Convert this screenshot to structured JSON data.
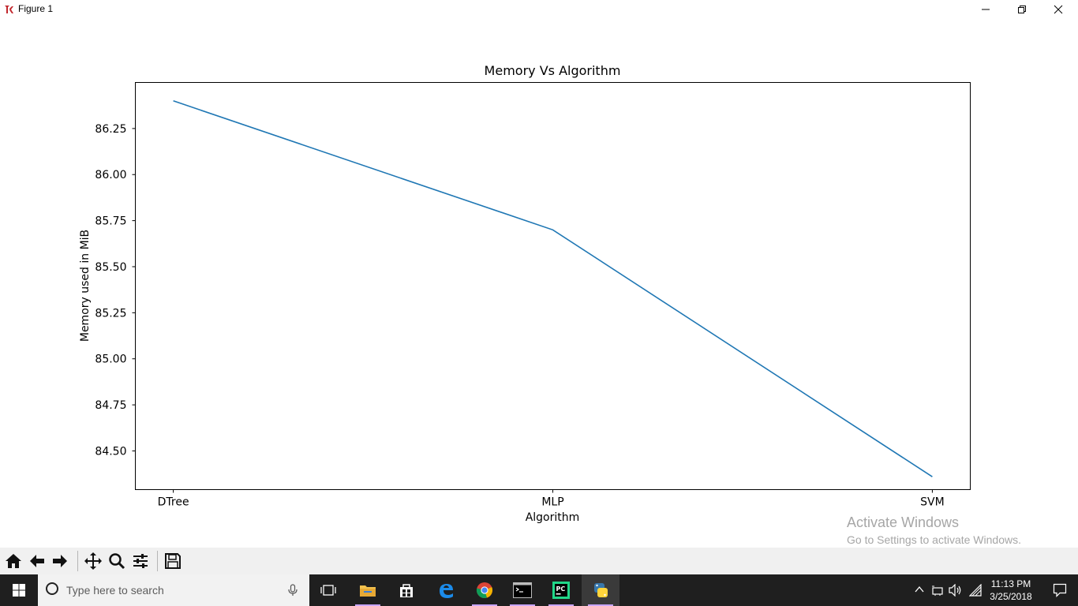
{
  "window": {
    "title": "Figure 1",
    "app_icon": "tk-feather-icon",
    "controls": [
      "minimize-icon",
      "restore-icon",
      "close-icon"
    ]
  },
  "chart_data": {
    "type": "line",
    "title": "Memory Vs Algorithm",
    "xlabel": "Algorithm",
    "ylabel": "Memory used in MiB",
    "categories": [
      "DTree",
      "MLP",
      "SVM"
    ],
    "series": [
      {
        "values": [
          86.4,
          85.7,
          84.36
        ],
        "color": "#1f77b4"
      }
    ],
    "ylim": [
      84.29,
      86.5
    ],
    "yticks": [
      84.5,
      84.75,
      85.0,
      85.25,
      85.5,
      85.75,
      86.0,
      86.25
    ],
    "ytick_labels": [
      "84.50",
      "84.75",
      "85.00",
      "85.25",
      "85.50",
      "85.75",
      "86.00",
      "86.25"
    ],
    "grid": false,
    "legend": "none"
  },
  "watermark": {
    "line1": "Activate Windows",
    "line2": "Go to Settings to activate Windows."
  },
  "toolbar": {
    "buttons": [
      "home-icon",
      "back-arrow-icon",
      "forward-arrow-icon",
      "pan-icon",
      "zoom-icon",
      "configure-subplots-icon",
      "save-icon"
    ]
  },
  "taskbar": {
    "search_placeholder": "Type here to search",
    "apps": [
      "task-view-icon",
      "file-explorer-icon",
      "store-icon",
      "edge-icon",
      "chrome-icon",
      "cmd-icon",
      "pycharm-icon",
      "python-icon"
    ],
    "clock_time": "11:13 PM",
    "clock_date": "3/25/2018",
    "accent": "#c9a6ff"
  }
}
